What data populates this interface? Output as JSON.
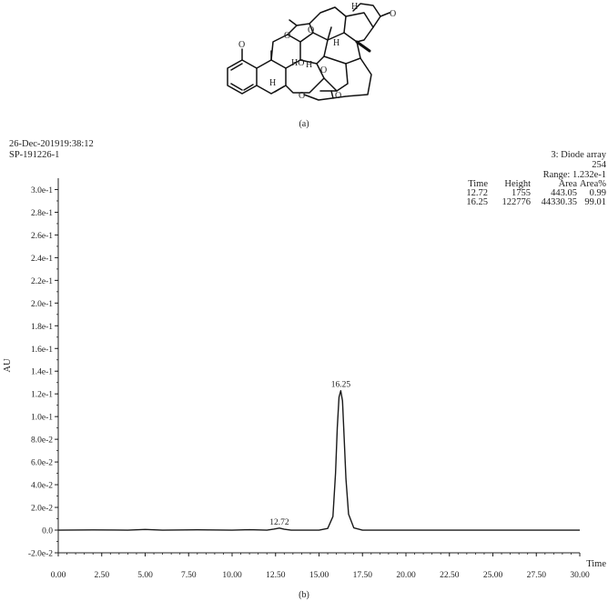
{
  "figure": {
    "caption_a": "(a)",
    "caption_b": "(b)"
  },
  "molecule": {
    "atom_labels": [
      "O",
      "O",
      "O",
      "O",
      "O",
      "O",
      "O",
      "H",
      "H",
      "H",
      "H",
      "HO"
    ]
  },
  "header": {
    "date_line": "26-Dec-201919:38:12",
    "sample_id": "SP-191226-1",
    "detector": "3: Diode array",
    "wavelength": "254",
    "range": "Range: 1.232e-1"
  },
  "peak_table": {
    "columns": [
      "Time",
      "Height",
      "Area",
      "Area%"
    ],
    "rows": [
      [
        "12.72",
        "1755",
        "443.05",
        "0.99"
      ],
      [
        "16.25",
        "122776",
        "44330.35",
        "99.01"
      ]
    ]
  },
  "chart_data": {
    "type": "line",
    "xlabel": "Time",
    "ylabel": "AU",
    "xlim": [
      0,
      30
    ],
    "ylim": [
      -0.02,
      0.31
    ],
    "x_ticks": [
      "0.00",
      "2.50",
      "5.00",
      "7.50",
      "10.00",
      "12.50",
      "15.00",
      "17.50",
      "20.00",
      "22.50",
      "25.00",
      "27.50",
      "30.00"
    ],
    "y_ticks": [
      "-2.0e-2",
      "0.0",
      "2.0e-2",
      "4.0e-2",
      "6.0e-2",
      "8.0e-2",
      "1.0e-1",
      "1.2e-1",
      "1.4e-1",
      "1.6e-1",
      "1.8e-1",
      "2.0e-1",
      "2.2e-1",
      "2.4e-1",
      "2.6e-1",
      "2.8e-1",
      "3.0e-1"
    ],
    "peaks": [
      {
        "label": "12.72",
        "time": 12.72,
        "height": 0.0018
      },
      {
        "label": "16.25",
        "time": 16.25,
        "height": 0.1228
      }
    ],
    "series": [
      {
        "x": [
          0,
          2,
          4,
          5,
          6,
          8,
          10,
          11,
          12,
          12.4,
          12.72,
          13.0,
          13.4,
          14,
          15,
          15.5,
          15.8,
          15.95,
          16.05,
          16.15,
          16.25,
          16.35,
          16.45,
          16.55,
          16.7,
          17.0,
          17.5,
          18,
          20,
          22,
          24,
          26,
          28,
          30
        ],
        "y": [
          0.0,
          0.0002,
          0.0,
          0.0006,
          0.0,
          0.0003,
          0.0,
          0.0004,
          0.0,
          0.0009,
          0.0018,
          0.0008,
          0.0,
          0.0,
          0.0,
          0.0015,
          0.012,
          0.05,
          0.09,
          0.117,
          0.1228,
          0.114,
          0.08,
          0.045,
          0.014,
          0.002,
          0.0,
          0.0,
          0.0,
          0.0,
          0.0,
          0.0,
          0.0,
          0.0
        ]
      }
    ]
  }
}
